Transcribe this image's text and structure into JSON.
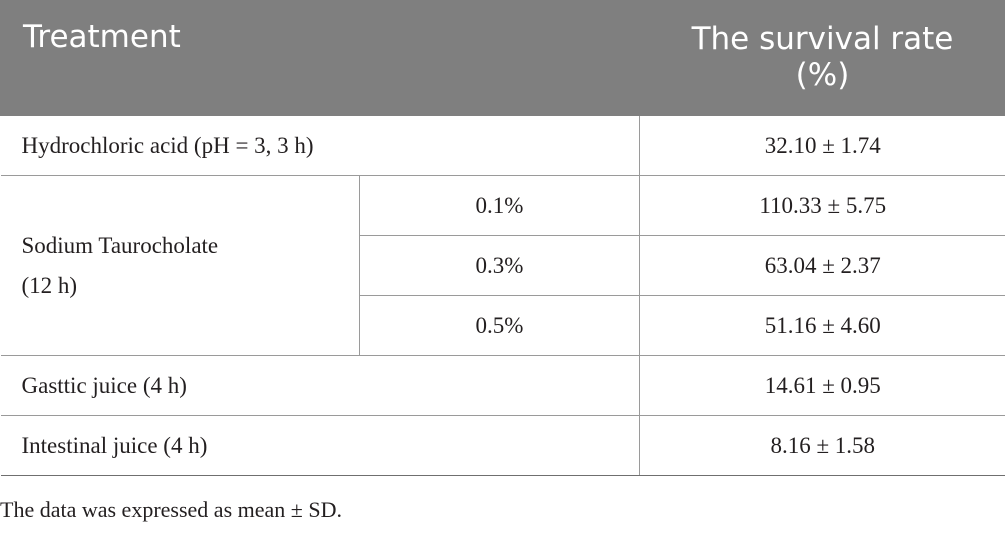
{
  "table": {
    "header": {
      "treatment": "Treatment",
      "survival_rate": "The survival rate (%)"
    },
    "rows": {
      "hcl": {
        "treatment": "Hydrochloric acid (pH = 3, 3 h)",
        "value": "32.10 ± 1.74"
      },
      "sodium": {
        "treatment_line1": "Sodium Taurocholate",
        "treatment_line2": "(12 h)",
        "sub": [
          {
            "concentration": "0.1%",
            "value": "110.33 ± 5.75"
          },
          {
            "concentration": "0.3%",
            "value": "63.04 ± 2.37"
          },
          {
            "concentration": "0.5%",
            "value": "51.16 ± 4.60"
          }
        ]
      },
      "gastric": {
        "treatment": "Gasttic juice (4 h)",
        "value": "14.61 ± 0.95"
      },
      "intestinal": {
        "treatment": "Intestinal juice (4 h)",
        "value": "8.16 ± 1.58"
      }
    }
  },
  "footnote": "The data was expressed as mean ± SD."
}
